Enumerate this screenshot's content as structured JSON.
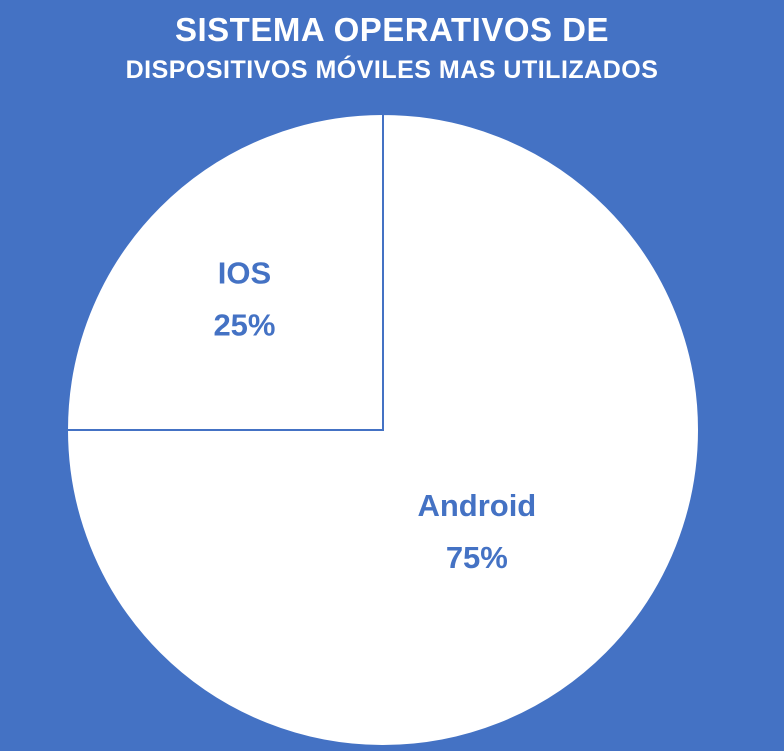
{
  "chart_data": {
    "type": "pie",
    "title": "SISTEMA OPERATIVOS DE",
    "subtitle": "DISPOSITIVOS MÓVILES MAS UTILIZADOS",
    "slices": [
      {
        "label": "IOS",
        "value": 25,
        "value_label": "25%"
      },
      {
        "label": "Android",
        "value": 75,
        "value_label": "75%"
      }
    ]
  },
  "colors": {
    "background": "#4472C4",
    "slice_fill": "#FFFFFF",
    "slice_border": "#4472C4",
    "label_text": "#4472C4",
    "title_text": "#FFFFFF"
  }
}
